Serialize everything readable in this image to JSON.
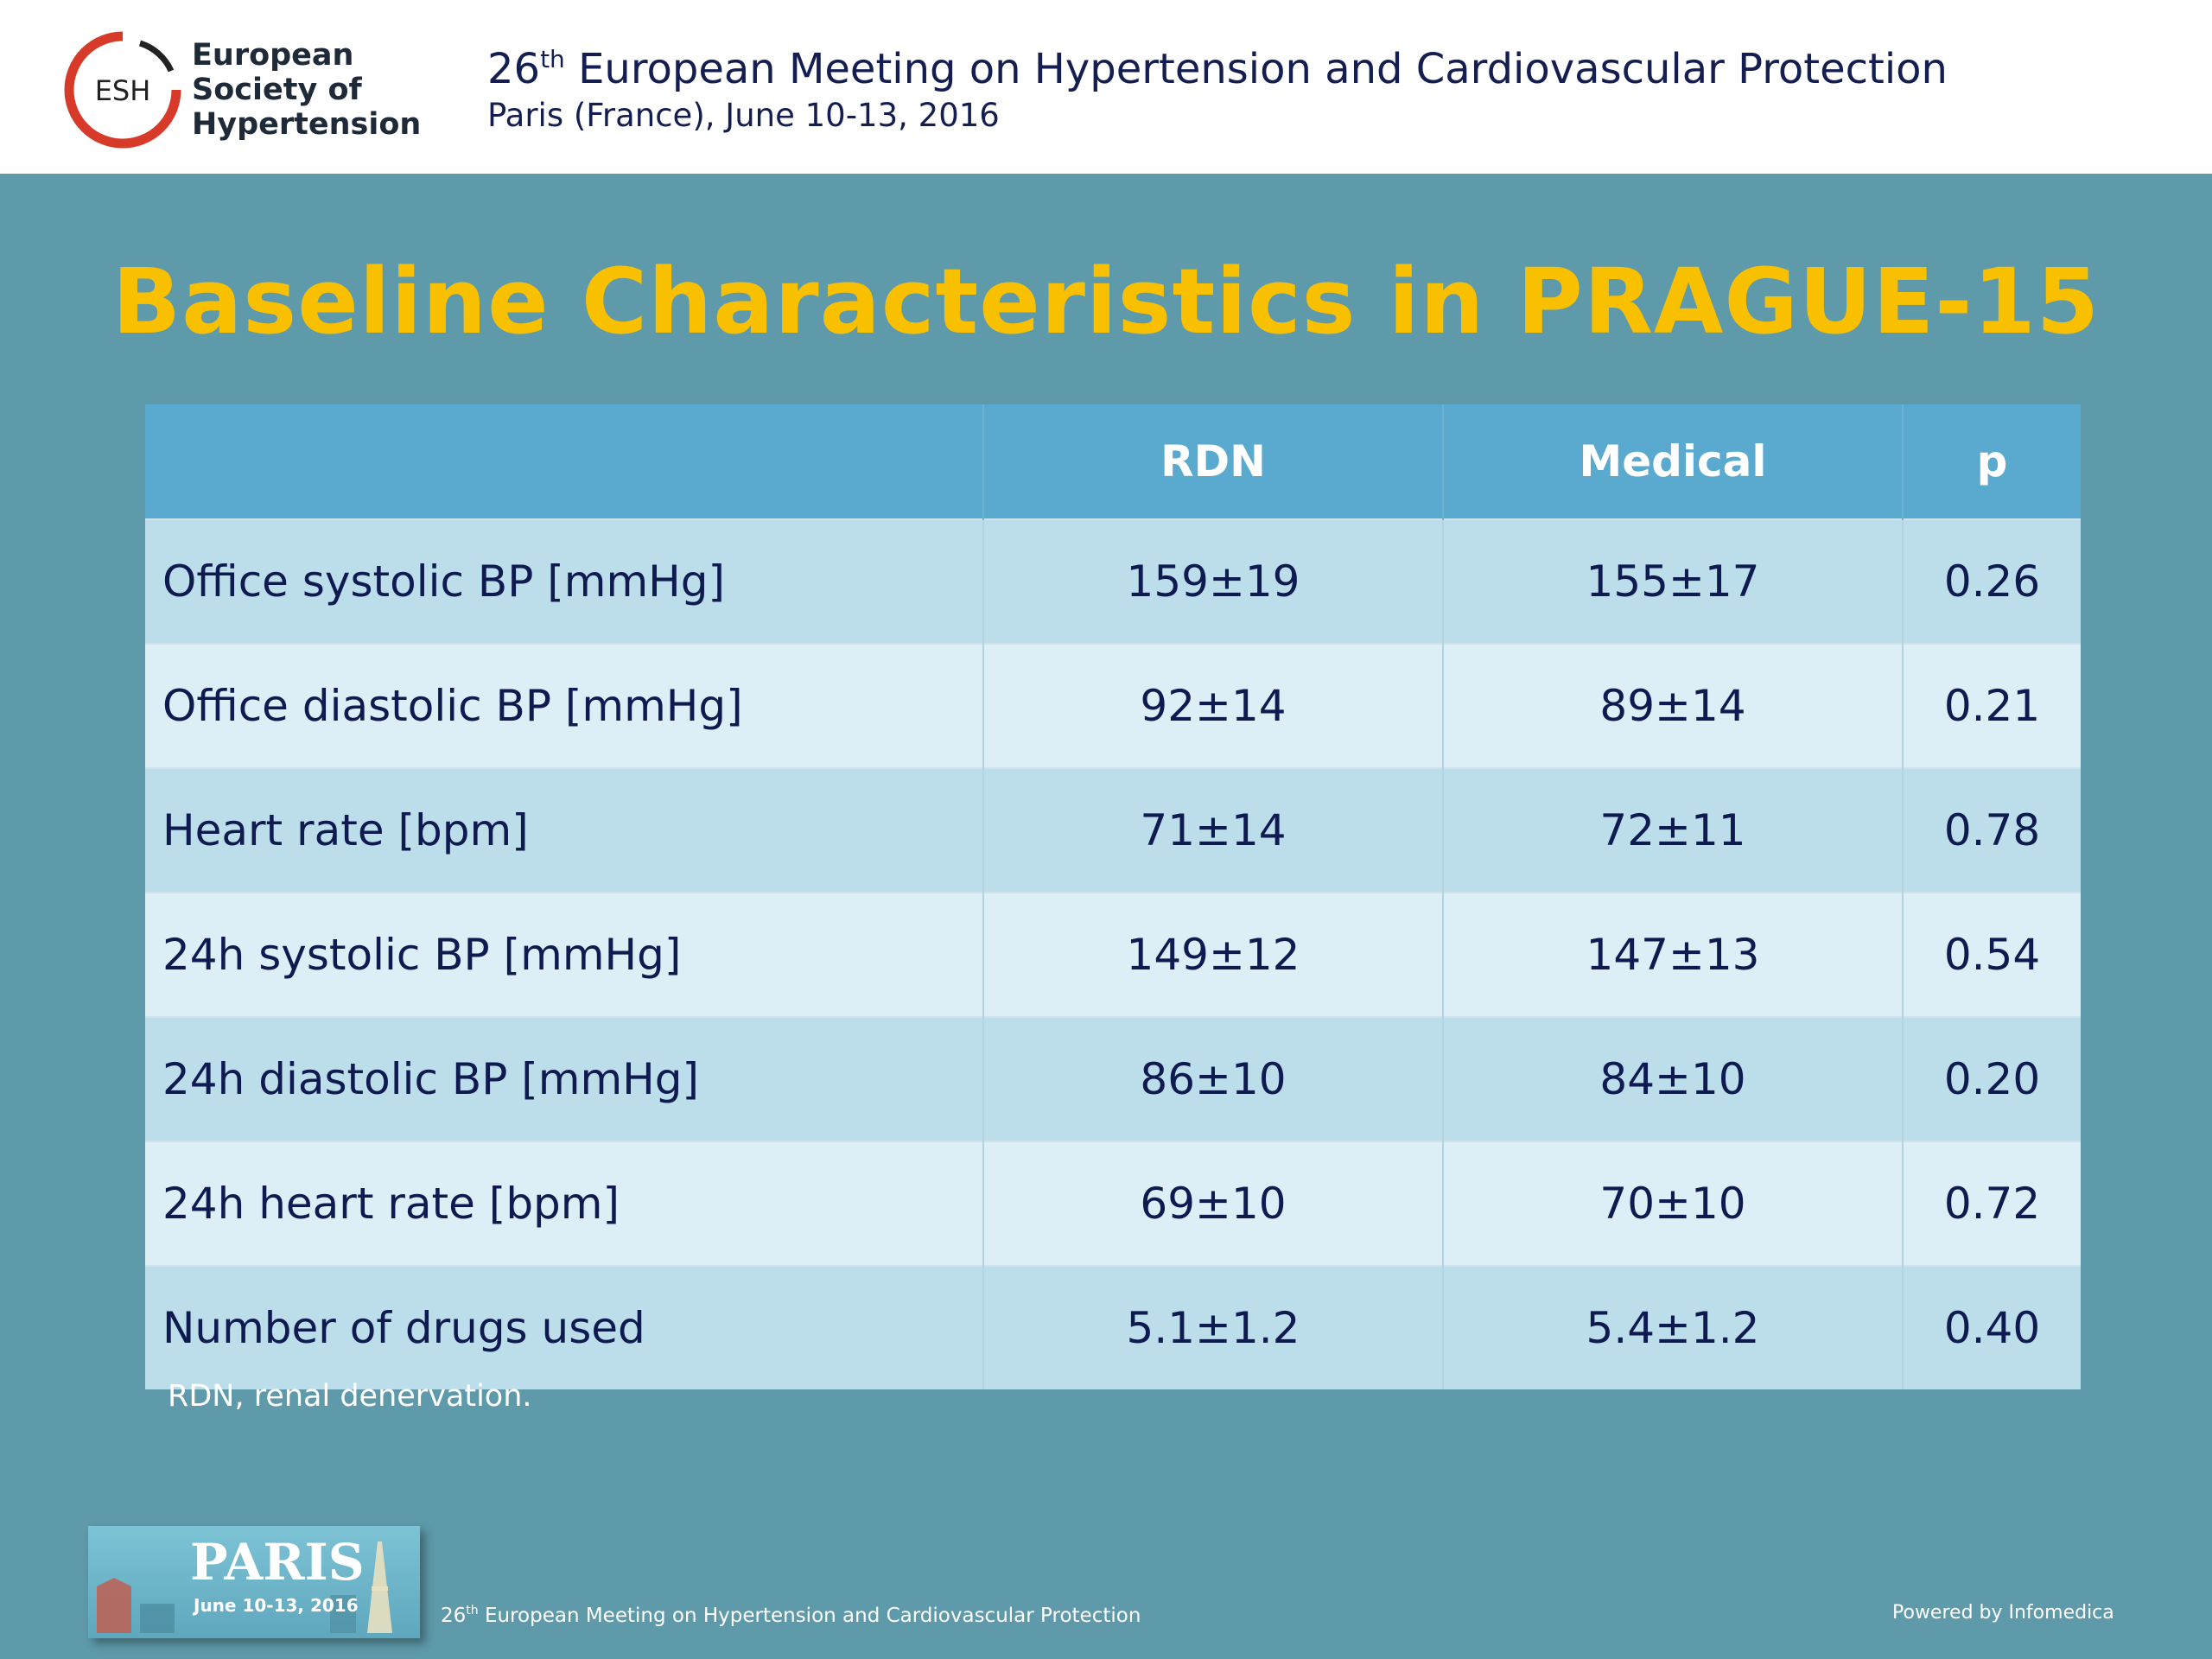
{
  "header": {
    "logo_text": "ESH",
    "org_line1": "European",
    "org_line2": "Society of",
    "org_line3": "Hypertension",
    "meeting_ordinal": "26",
    "meeting_ordinal_suffix": "th",
    "meeting_name": " European Meeting on Hypertension and Cardiovascular Protection",
    "meeting_location": "Paris (France), June 10-13, 2016"
  },
  "slide": {
    "title": "Baseline Characteristics in PRAGUE-15",
    "footnote": "RDN, renal denervation."
  },
  "table": {
    "headers": [
      "",
      "RDN",
      "Medical",
      "p"
    ],
    "rows": [
      [
        "Office systolic BP [mmHg]",
        "159±19",
        "155±17",
        "0.26"
      ],
      [
        "Office diastolic BP [mmHg]",
        "92±14",
        "89±14",
        "0.21"
      ],
      [
        "Heart rate [bpm]",
        "71±14",
        "72±11",
        "0.78"
      ],
      [
        "24h systolic BP [mmHg]",
        "149±12",
        "147±13",
        "0.54"
      ],
      [
        "24h diastolic BP [mmHg]",
        "86±10",
        "84±10",
        "0.20"
      ],
      [
        "24h heart rate [bpm]",
        "69±10",
        "70±10",
        "0.72"
      ],
      [
        "Number of drugs used",
        "5.1±1.2",
        "5.4±1.2",
        "0.40"
      ]
    ]
  },
  "footer": {
    "badge_city": "PARIS",
    "badge_date": "June 10-13, 2016",
    "meeting_ordinal": "26",
    "meeting_ordinal_suffix": "th",
    "meeting_name": " European Meeting on Hypertension and Cardiovascular Protection",
    "powered_by": "Powered by Infomedica"
  },
  "colors": {
    "background": "#5f9aaa",
    "title": "#f9c000",
    "table_header": "#5aaad0",
    "row_dark": "#bcdeea",
    "row_light": "#ddeef6",
    "logo_red": "#d83a2a"
  }
}
